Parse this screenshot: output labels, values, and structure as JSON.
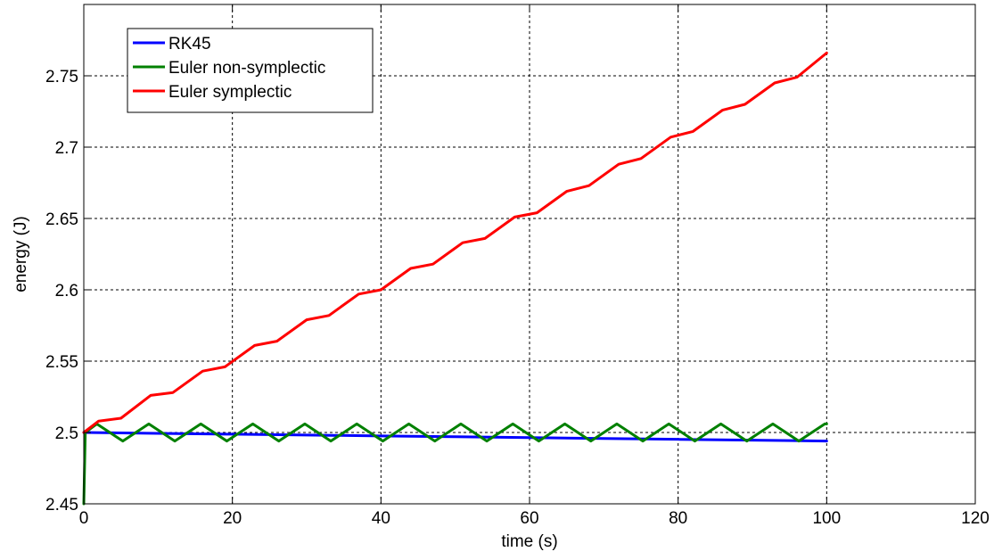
{
  "chart_data": {
    "type": "line",
    "xlabel": "time (s)",
    "ylabel": "energy (J)",
    "xlim": [
      0,
      120
    ],
    "ylim": [
      2.45,
      2.8
    ],
    "xticks": [
      0,
      20,
      40,
      60,
      80,
      100,
      120
    ],
    "yticks": [
      2.45,
      2.5,
      2.55,
      2.6,
      2.65,
      2.7,
      2.75
    ],
    "ytick_labels": [
      "2.45",
      "2.5",
      "2.55",
      "2.6",
      "2.65",
      "2.7",
      "2.75"
    ],
    "grid": true,
    "legend_position": "top-left",
    "series": [
      {
        "name": "RK45",
        "color": "#0000ff",
        "x": [
          0,
          10,
          20,
          30,
          40,
          50,
          60,
          70,
          80,
          90,
          100
        ],
        "y": [
          2.5,
          2.4994,
          2.4988,
          2.4982,
          2.4976,
          2.497,
          2.4964,
          2.4958,
          2.4952,
          2.4946,
          2.494
        ]
      },
      {
        "name": "Euler non-symplectic",
        "color": "#008000",
        "x": [
          0,
          0.2,
          1.75,
          5.25,
          8.75,
          12.25,
          15.75,
          19.25,
          22.75,
          26.25,
          29.75,
          33.25,
          36.75,
          40.25,
          43.75,
          47.25,
          50.75,
          54.25,
          57.75,
          61.25,
          64.75,
          68.25,
          71.75,
          75.25,
          78.75,
          82.25,
          85.75,
          89.25,
          92.75,
          96.25,
          99.75,
          100
        ],
        "y": [
          2.45,
          2.5,
          2.506,
          2.494,
          2.506,
          2.494,
          2.506,
          2.494,
          2.506,
          2.494,
          2.506,
          2.494,
          2.506,
          2.494,
          2.506,
          2.494,
          2.506,
          2.494,
          2.506,
          2.494,
          2.506,
          2.494,
          2.506,
          2.494,
          2.506,
          2.494,
          2.506,
          2.494,
          2.506,
          2.494,
          2.506,
          2.506
        ]
      },
      {
        "name": "Euler symplectic",
        "color": "#ff0000",
        "x": [
          0,
          2,
          5,
          9,
          12,
          16,
          19,
          23,
          26,
          30,
          33,
          37,
          40,
          44,
          47,
          51,
          54,
          58,
          61,
          65,
          68,
          72,
          75,
          79,
          82,
          86,
          89,
          93,
          96,
          100
        ],
        "y": [
          2.5,
          2.508,
          2.51,
          2.526,
          2.528,
          2.543,
          2.546,
          2.561,
          2.564,
          2.579,
          2.582,
          2.597,
          2.6,
          2.615,
          2.618,
          2.633,
          2.636,
          2.651,
          2.654,
          2.669,
          2.673,
          2.688,
          2.692,
          2.707,
          2.711,
          2.726,
          2.73,
          2.745,
          2.749,
          2.766
        ]
      }
    ]
  }
}
